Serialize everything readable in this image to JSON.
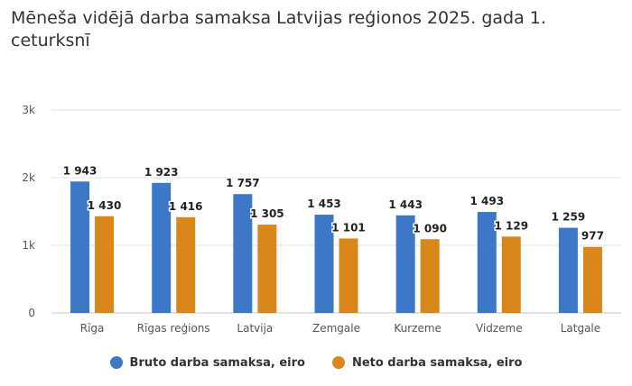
{
  "title": "Mēneša vidējā darba samaksa Latvijas reģionos 2025. gada 1. ceturksnī",
  "chart_data": {
    "type": "bar",
    "categories": [
      "Rīga",
      "Rīgas reģions",
      "Latvija",
      "Zemgale",
      "Kurzeme",
      "Vidzeme",
      "Latgale"
    ],
    "series": [
      {
        "name": "Bruto darba samaksa, eiro",
        "color": "#3d77c7",
        "values": [
          1943,
          1923,
          1757,
          1453,
          1443,
          1493,
          1259
        ],
        "value_labels": [
          "1 943",
          "1 923",
          "1 757",
          "1 453",
          "1 443",
          "1 493",
          "1 259"
        ]
      },
      {
        "name": "Neto darba samaksa, eiro",
        "color": "#d9861a",
        "values": [
          1430,
          1416,
          1305,
          1101,
          1090,
          1129,
          977
        ],
        "value_labels": [
          "1 430",
          "1 416",
          "1 305",
          "1 101",
          "1 090",
          "1 129",
          "977"
        ]
      }
    ],
    "ylim": [
      0,
      3000
    ],
    "yticks": [
      0,
      1000,
      2000,
      3000
    ],
    "ytick_labels": [
      "0",
      "1k",
      "2k",
      "3k"
    ],
    "grid": true,
    "legend_position": "bottom-center"
  }
}
